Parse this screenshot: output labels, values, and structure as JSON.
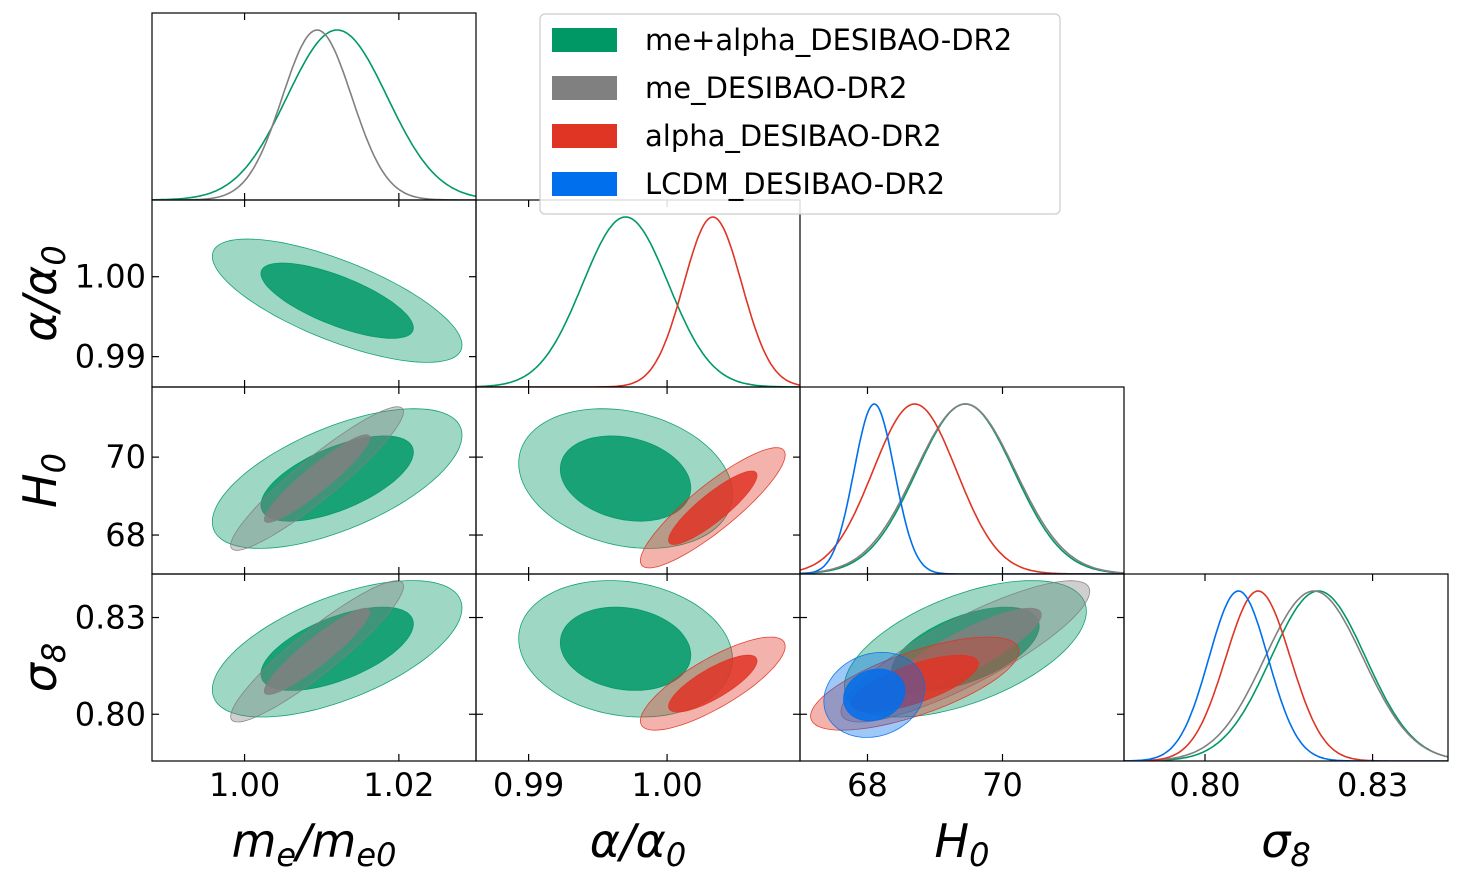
{
  "chart_data": {
    "type": "triangle-plot",
    "title": "",
    "params": [
      {
        "key": "me",
        "label_main": "m",
        "label_sub": "e",
        "label_main2": "/m",
        "label_sub2": "e0",
        "range": [
          0.988,
          1.03
        ],
        "ticks": [
          1.0,
          1.02
        ],
        "tick_labels": [
          "1.00",
          "1.02"
        ]
      },
      {
        "key": "alpha",
        "label_main": "α/α",
        "label_sub": "0",
        "label_main2": "",
        "label_sub2": "",
        "range": [
          0.9862,
          1.0096
        ],
        "ticks": [
          0.99,
          1.0
        ],
        "tick_labels": [
          "0.99",
          "1.00"
        ]
      },
      {
        "key": "H0",
        "label_main": "H",
        "label_sub": "0",
        "label_main2": "",
        "label_sub2": "",
        "range": [
          67.0,
          71.8
        ],
        "ticks": [
          68,
          70
        ],
        "tick_labels": [
          "68",
          "70"
        ]
      },
      {
        "key": "sigma8",
        "label_main": "σ",
        "label_sub": "8",
        "label_main2": "",
        "label_sub2": "",
        "range": [
          0.7855,
          0.8435
        ],
        "ticks": [
          0.8,
          0.83
        ],
        "tick_labels": [
          "0.80",
          "0.83"
        ]
      }
    ],
    "series": [
      {
        "name": "me+alpha_DESIBAO-DR2",
        "color": "#009966",
        "mean": {
          "me": 1.012,
          "alpha": 0.997,
          "H0": 69.45,
          "sigma8": 0.8203
        },
        "sigma": {
          "me": 0.0065,
          "alpha": 0.0031,
          "H0": 0.72,
          "sigma8": 0.0085
        },
        "corr": {
          "me|alpha": -0.72,
          "me|H0": 0.62,
          "me|sigma8": 0.6,
          "alpha|H0": -0.22,
          "alpha|sigma8": -0.15,
          "H0|sigma8": 0.55
        }
      },
      {
        "name": "me_DESIBAO-DR2",
        "color": "#808080",
        "mean": {
          "me": 1.0094,
          "H0": 69.45,
          "sigma8": 0.8195
        },
        "sigma": {
          "me": 0.0045,
          "H0": 0.74,
          "sigma8": 0.0088
        },
        "corr": {
          "me|H0": 0.93,
          "me|sigma8": 0.92,
          "H0|sigma8": 0.85
        }
      },
      {
        "name": "alpha_DESIBAO-DR2",
        "color": "#e03424",
        "mean": {
          "alpha": 1.0033,
          "H0": 68.7,
          "sigma8": 0.8095
        },
        "sigma": {
          "alpha": 0.0021,
          "H0": 0.62,
          "sigma8": 0.0058
        },
        "corr": {
          "alpha|H0": 0.88,
          "alpha|sigma8": 0.8,
          "H0|sigma8": 0.7
        }
      },
      {
        "name": "LCDM_DESIBAO-DR2",
        "color": "#006fed",
        "mean": {
          "H0": 68.1,
          "sigma8": 0.806
        },
        "sigma": {
          "H0": 0.3,
          "sigma8": 0.0053
        },
        "corr": {
          "H0|sigma8": 0.15
        }
      }
    ],
    "legend_position": "top-center"
  }
}
